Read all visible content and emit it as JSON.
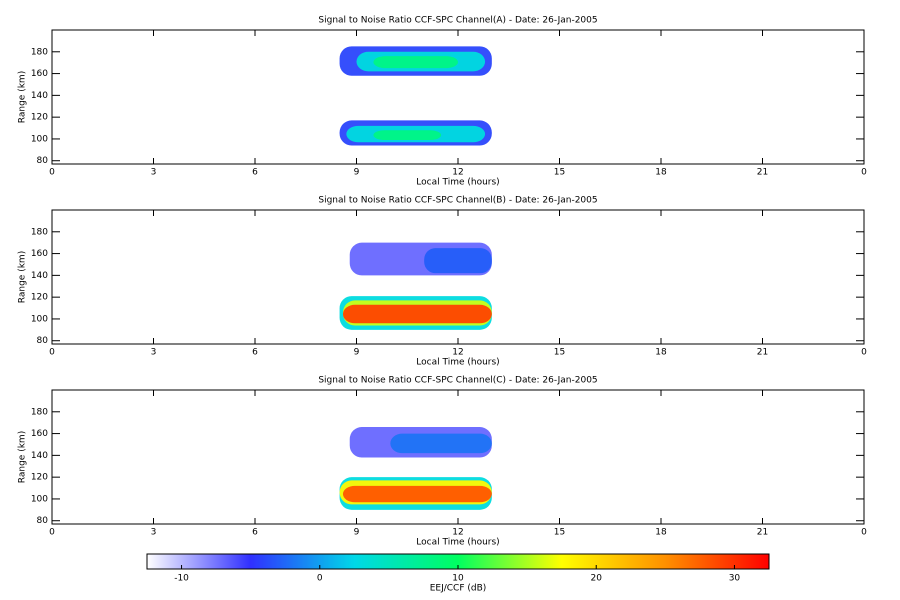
{
  "chart_data": [
    {
      "type": "heatmap",
      "title": "Signal to Noise Ratio CCF-SPC Channel(A) - Date: 26-Jan-2005",
      "xlabel": "Local Time (hours)",
      "ylabel": "Range (km)",
      "xlim": [
        0,
        24
      ],
      "xticks": [
        0,
        3,
        6,
        9,
        12,
        15,
        18,
        21,
        {
          "value": 24,
          "label": "0"
        }
      ],
      "ylim": [
        77,
        200
      ],
      "yticks": [
        80,
        100,
        120,
        140,
        160,
        180
      ],
      "cells": [
        {
          "x": [
            8.5,
            13
          ],
          "y": [
            158,
            185
          ],
          "value": -4
        },
        {
          "x": [
            9,
            12.8
          ],
          "y": [
            162,
            180
          ],
          "value": 3
        },
        {
          "x": [
            9.5,
            12
          ],
          "y": [
            165,
            176
          ],
          "value": 8
        },
        {
          "x": [
            8.5,
            13
          ],
          "y": [
            94,
            117
          ],
          "value": -4
        },
        {
          "x": [
            8.7,
            12.8
          ],
          "y": [
            97,
            112
          ],
          "value": 3
        },
        {
          "x": [
            9.5,
            11.5
          ],
          "y": [
            99,
            108
          ],
          "value": 8
        }
      ]
    },
    {
      "type": "heatmap",
      "title": "Signal to Noise Ratio CCF-SPC Channel(B) - Date: 26-Jan-2005",
      "xlabel": "Local Time (hours)",
      "ylabel": "Range (km)",
      "xlim": [
        0,
        24
      ],
      "xticks": [
        0,
        3,
        6,
        9,
        12,
        15,
        18,
        21,
        {
          "value": 24,
          "label": "0"
        }
      ],
      "ylim": [
        77,
        200
      ],
      "yticks": [
        80,
        100,
        120,
        140,
        160,
        180
      ],
      "cells": [
        {
          "x": [
            8.8,
            13
          ],
          "y": [
            140,
            170
          ],
          "value": -7
        },
        {
          "x": [
            11,
            13
          ],
          "y": [
            142,
            165
          ],
          "value": -3
        },
        {
          "x": [
            8.5,
            13
          ],
          "y": [
            90,
            121
          ],
          "value": 3
        },
        {
          "x": [
            8.6,
            13
          ],
          "y": [
            94,
            117
          ],
          "value": 16
        },
        {
          "x": [
            8.6,
            13
          ],
          "y": [
            96,
            113
          ],
          "value": 29
        }
      ]
    },
    {
      "type": "heatmap",
      "title": "Signal to Noise Ratio CCF-SPC Channel(C) - Date: 26-Jan-2005",
      "xlabel": "Local Time (hours)",
      "ylabel": "Range (km)",
      "xlim": [
        0,
        24
      ],
      "xticks": [
        0,
        3,
        6,
        9,
        12,
        15,
        18,
        21,
        {
          "value": 24,
          "label": "0"
        }
      ],
      "ylim": [
        77,
        200
      ],
      "yticks": [
        80,
        100,
        120,
        140,
        160,
        180
      ],
      "cells": [
        {
          "x": [
            8.8,
            13
          ],
          "y": [
            138,
            166
          ],
          "value": -7
        },
        {
          "x": [
            10,
            13
          ],
          "y": [
            142,
            160
          ],
          "value": -2
        },
        {
          "x": [
            8.5,
            13
          ],
          "y": [
            90,
            120
          ],
          "value": 3
        },
        {
          "x": [
            8.5,
            13
          ],
          "y": [
            95,
            117
          ],
          "value": 18
        },
        {
          "x": [
            8.6,
            13
          ],
          "y": [
            97,
            112
          ],
          "value": 28
        }
      ]
    }
  ],
  "colorbar": {
    "label": "EEJ/CCF (dB)",
    "lim": [
      -12.5,
      32.5
    ],
    "ticks": [
      -10,
      0,
      10,
      20,
      30
    ],
    "colormap": [
      "#ffffff",
      "#3030ff",
      "#00d8e8",
      "#00ff60",
      "#ffff00",
      "#ff9000",
      "#ff0000"
    ]
  }
}
